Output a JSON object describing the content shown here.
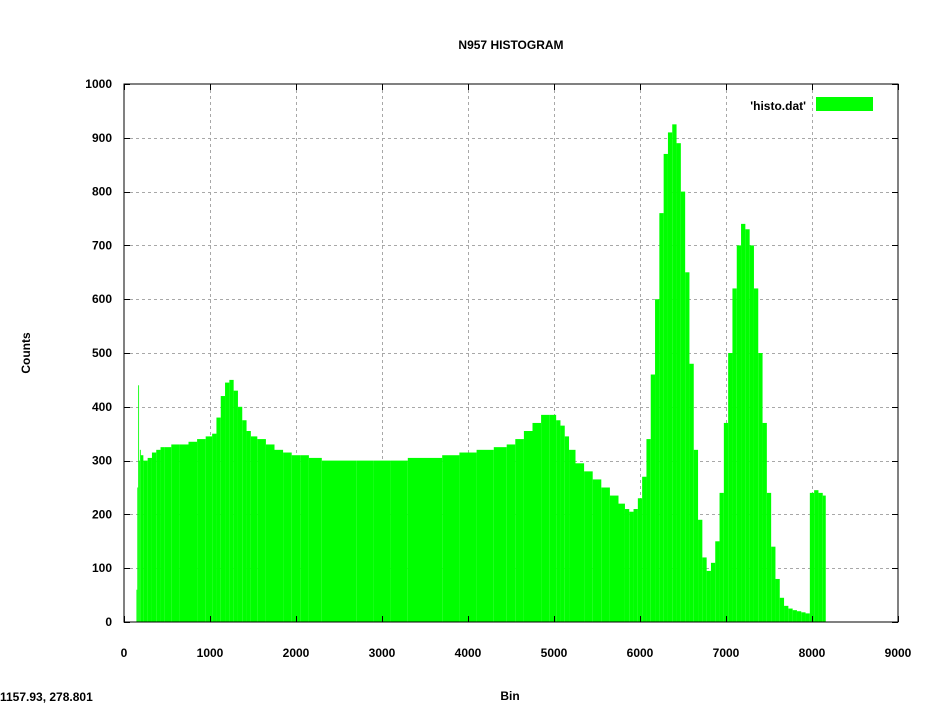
{
  "status_bar": {
    "coordinates": "1157.93,  278.801"
  },
  "chart_data": {
    "type": "bar",
    "title": "N957 HISTOGRAM",
    "xlabel": "Bin",
    "ylabel": "Counts",
    "xlim": [
      0,
      9000
    ],
    "ylim": [
      0,
      1000
    ],
    "x_ticks": [
      0,
      1000,
      2000,
      3000,
      4000,
      5000,
      6000,
      7000,
      8000,
      9000
    ],
    "y_ticks": [
      0,
      100,
      200,
      300,
      400,
      500,
      600,
      700,
      800,
      900,
      1000
    ],
    "grid": true,
    "legend": "top-right",
    "bin_width": 10,
    "series": [
      {
        "name": "'histo.dat'",
        "color": "#00ff00",
        "x": [
          150,
          160,
          170,
          180,
          190,
          200,
          250,
          300,
          350,
          400,
          450,
          500,
          600,
          700,
          800,
          900,
          1000,
          1050,
          1100,
          1150,
          1200,
          1250,
          1300,
          1350,
          1400,
          1450,
          1500,
          1600,
          1700,
          1800,
          1900,
          2000,
          2100,
          2200,
          2400,
          2600,
          2800,
          3000,
          3200,
          3400,
          3600,
          3800,
          4000,
          4200,
          4400,
          4500,
          4600,
          4700,
          4800,
          4900,
          5000,
          5050,
          5100,
          5150,
          5200,
          5300,
          5400,
          5500,
          5600,
          5700,
          5800,
          5850,
          5900,
          5950,
          6000,
          6050,
          6100,
          6150,
          6200,
          6250,
          6300,
          6350,
          6400,
          6450,
          6500,
          6550,
          6600,
          6650,
          6700,
          6750,
          6800,
          6850,
          6900,
          6950,
          7000,
          7050,
          7100,
          7150,
          7200,
          7250,
          7300,
          7350,
          7400,
          7450,
          7500,
          7550,
          7600,
          7650,
          7700,
          7750,
          7800,
          7850,
          7900,
          7950,
          8000,
          8050,
          8100,
          8150,
          8170
        ],
        "values": [
          60,
          250,
          440,
          300,
          320,
          310,
          300,
          305,
          315,
          320,
          325,
          325,
          330,
          330,
          335,
          340,
          345,
          350,
          380,
          420,
          445,
          450,
          430,
          400,
          375,
          355,
          345,
          340,
          330,
          320,
          315,
          310,
          310,
          305,
          300,
          300,
          300,
          300,
          300,
          305,
          305,
          310,
          315,
          320,
          325,
          330,
          340,
          355,
          370,
          385,
          385,
          375,
          365,
          345,
          320,
          295,
          280,
          265,
          250,
          235,
          220,
          210,
          205,
          210,
          230,
          270,
          340,
          460,
          600,
          760,
          870,
          910,
          925,
          890,
          800,
          650,
          480,
          320,
          190,
          120,
          95,
          110,
          150,
          240,
          370,
          500,
          620,
          700,
          740,
          730,
          700,
          620,
          500,
          370,
          240,
          140,
          80,
          45,
          30,
          25,
          22,
          20,
          18,
          16,
          240,
          245,
          240,
          235,
          0
        ]
      }
    ]
  }
}
